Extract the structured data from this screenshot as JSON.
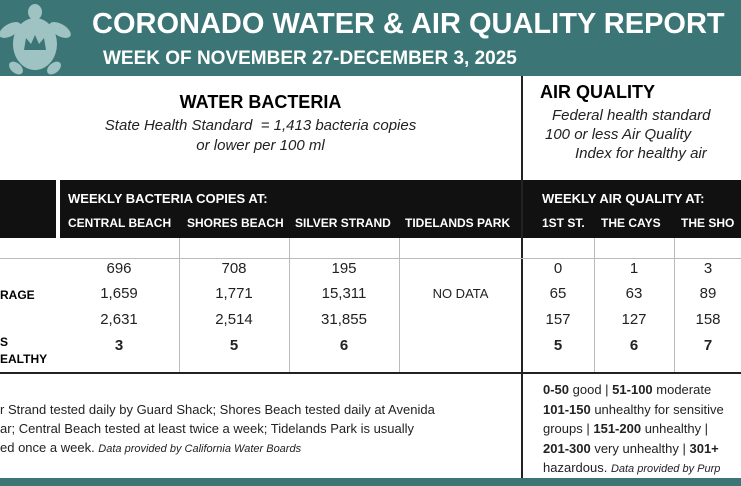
{
  "header": {
    "title": "CORONADO WATER & AIR QUALITY REPORT",
    "subtitle": "WEEK OF NOVEMBER 27-DECEMBER 3, 2025"
  },
  "water": {
    "title": "WATER BACTERIA",
    "standard_lines": [
      "State Health Standard  = 1,413 bacteria copies",
      "or lower per 100 ml"
    ],
    "group_header": "WEEKLY BACTERIA COPIES AT:",
    "columns": [
      "CENTRAL BEACH",
      "SHORES BEACH",
      "SILVER STRAND",
      "TIDELANDS PARK"
    ],
    "row_labels": [
      null,
      "RAGE",
      null,
      "S\nEALTHY"
    ],
    "rows": [
      [
        "696",
        "708",
        "195",
        null
      ],
      [
        "1,659",
        "1,771",
        "15,311",
        "NO DATA"
      ],
      [
        "2,631",
        "2,514",
        "31,855",
        null
      ],
      [
        "3",
        "5",
        "6",
        null
      ]
    ],
    "footnote": [
      [
        {
          "text": "r Strand tested daily by Guard Shack; Shores Beach tested daily at Avenida",
          "style": "normal"
        }
      ],
      [
        {
          "text": "ar; Central Beach tested at least twice a week; Tidelands Park is usually",
          "style": "normal"
        }
      ],
      [
        {
          "text": "ed once a week. ",
          "style": "normal"
        },
        {
          "text": "Data provided by California Water Boards",
          "style": "italic"
        }
      ]
    ]
  },
  "air": {
    "title": "AIR QUALITY",
    "standard_lines": [
      "Federal health standard",
      "100 or less Air Quality",
      "Index for healthy air"
    ],
    "group_header": "WEEKLY AIR QUALITY AT:",
    "columns": [
      "1ST ST.",
      "THE CAYS",
      "THE SHO"
    ],
    "rows": [
      [
        "0",
        "1",
        "3"
      ],
      [
        "65",
        "63",
        "89"
      ],
      [
        "157",
        "127",
        "158"
      ],
      [
        "5",
        "6",
        "7"
      ]
    ],
    "legend": [
      [
        {
          "text": "0-50",
          "style": "bold"
        },
        {
          "text": " good | ",
          "style": "normal"
        },
        {
          "text": "51-100",
          "style": "bold"
        },
        {
          "text": " moderate",
          "style": "normal"
        }
      ],
      [
        {
          "text": "101-150",
          "style": "bold"
        },
        {
          "text": " unhealthy for sensitive",
          "style": "normal"
        }
      ],
      [
        {
          "text": "groups | ",
          "style": "normal"
        },
        {
          "text": "151-200",
          "style": "bold"
        },
        {
          "text": " unhealthy |",
          "style": "normal"
        }
      ],
      [
        {
          "text": "201-300",
          "style": "bold"
        },
        {
          "text": " very unhealthy | ",
          "style": "normal"
        },
        {
          "text": "301+",
          "style": "bold"
        }
      ],
      [
        {
          "text": "hazardous. ",
          "style": "normal"
        },
        {
          "text": "Data provided by Purp",
          "style": "italic"
        }
      ]
    ]
  }
}
